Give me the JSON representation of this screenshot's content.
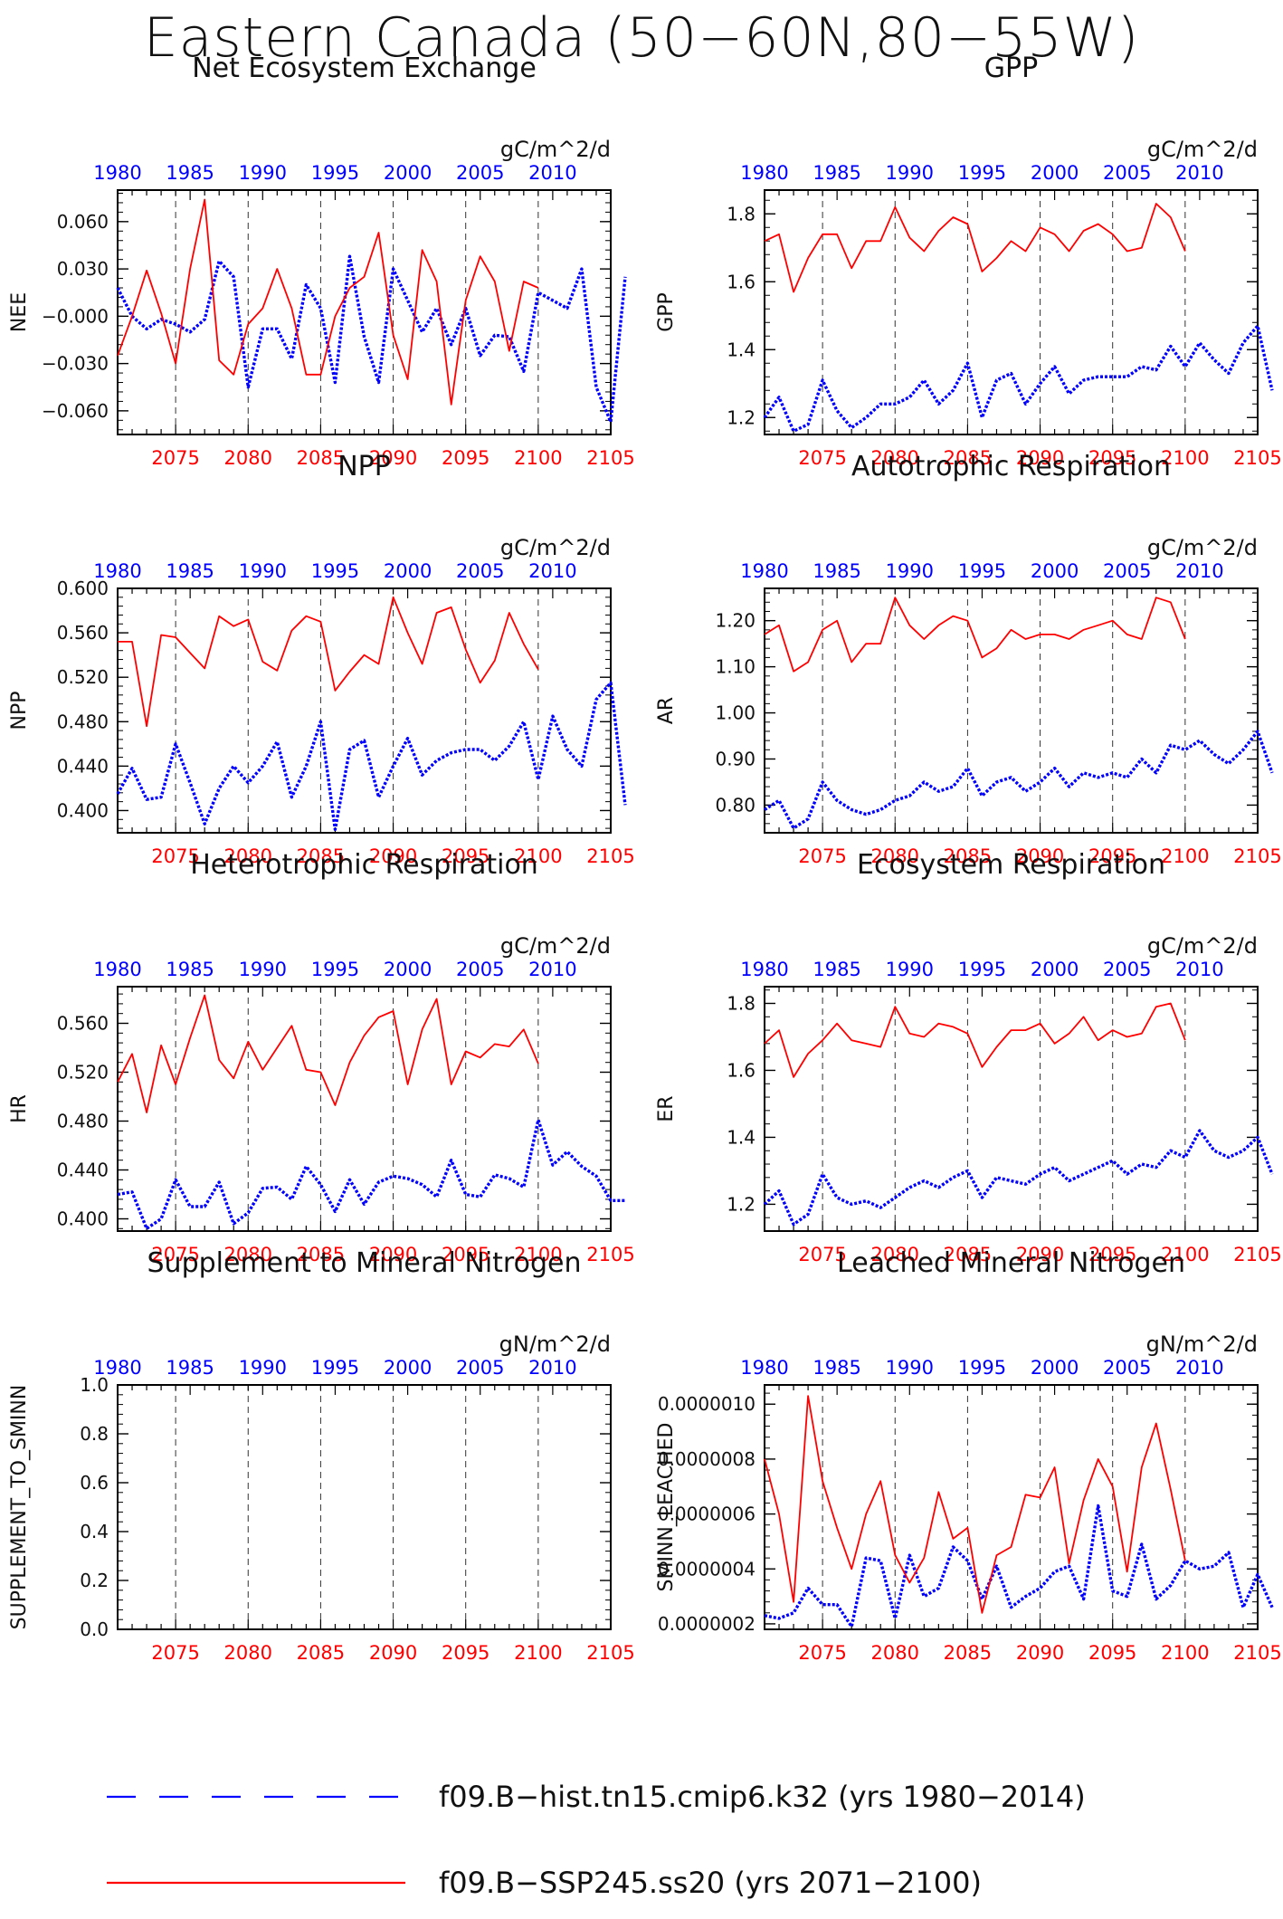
{
  "page": {
    "title": "Eastern Canada (50−60N,80−55W)"
  },
  "legend": {
    "items": [
      {
        "label": "f09.B−hist.tn15.cmip6.k32 (yrs 1980−2014)",
        "color": "#0000ff",
        "style": "dashed"
      },
      {
        "label": "f09.B−SSP245.ss20 (yrs 2071−2100)",
        "color": "#ff0000",
        "style": "solid"
      }
    ]
  },
  "colors": {
    "hist": "#0000ff",
    "future": "#ff0000"
  },
  "chart_data": [
    {
      "type": "line",
      "title": "Net Ecosystem Exchange",
      "ylabel": "NEE",
      "units": "gC/m^2/d",
      "ylim": [
        -0.075,
        0.08
      ],
      "yticks": [
        -0.06,
        -0.03,
        0.0,
        0.03,
        0.06
      ],
      "ytick_labels": [
        "−0.060",
        "−0.030",
        "−0.000",
        "0.030",
        "0.060"
      ],
      "bottom_axis": {
        "range": [
          2071,
          2105
        ],
        "ticks": [
          2075,
          2080,
          2085,
          2090,
          2095,
          2100,
          2105
        ]
      },
      "top_axis": {
        "range": [
          1980,
          2014
        ],
        "ticks": [
          1980,
          1985,
          1990,
          1995,
          2000,
          2005,
          2010
        ]
      },
      "gridlines_x": [
        2075,
        2080,
        2085,
        2090,
        2095,
        2100
      ],
      "series": [
        {
          "key": "hist",
          "x_start": 1980,
          "values": [
            0.018,
            0.0,
            -0.008,
            -0.002,
            -0.005,
            -0.01,
            -0.002,
            0.035,
            0.025,
            -0.045,
            -0.008,
            -0.008,
            -0.027,
            0.02,
            0.005,
            -0.042,
            0.038,
            -0.013,
            -0.042,
            0.03,
            0.01,
            -0.01,
            0.005,
            -0.018,
            0.005,
            -0.025,
            -0.012,
            -0.013,
            -0.035,
            0.015,
            0.01,
            0.005,
            0.03,
            -0.045,
            -0.067,
            0.025
          ]
        },
        {
          "key": "future",
          "x_start": 2071,
          "values": [
            -0.025,
            0.0,
            0.029,
            0.002,
            -0.03,
            0.03,
            0.074,
            -0.028,
            -0.037,
            -0.005,
            0.005,
            0.03,
            0.005,
            -0.037,
            -0.037,
            0.0,
            0.018,
            0.025,
            0.053,
            -0.012,
            -0.04,
            0.042,
            0.022,
            -0.056,
            0.01,
            0.038,
            0.022,
            -0.022,
            0.022,
            0.018
          ]
        }
      ]
    },
    {
      "type": "line",
      "title": "GPP",
      "ylabel": "GPP",
      "units": "gC/m^2/d",
      "ylim": [
        1.15,
        1.87
      ],
      "yticks": [
        1.2,
        1.4,
        1.6,
        1.8
      ],
      "ytick_labels": [
        "1.2",
        "1.4",
        "1.6",
        "1.8"
      ],
      "bottom_axis": {
        "range": [
          2071,
          2105
        ],
        "ticks": [
          2075,
          2080,
          2085,
          2090,
          2095,
          2100,
          2105
        ]
      },
      "top_axis": {
        "range": [
          1980,
          2014
        ],
        "ticks": [
          1980,
          1985,
          1990,
          1995,
          2000,
          2005,
          2010
        ]
      },
      "gridlines_x": [
        2075,
        2080,
        2085,
        2090,
        2095,
        2100
      ],
      "series": [
        {
          "key": "hist",
          "x_start": 1980,
          "values": [
            1.2,
            1.26,
            1.16,
            1.18,
            1.31,
            1.22,
            1.17,
            1.2,
            1.24,
            1.24,
            1.26,
            1.31,
            1.24,
            1.28,
            1.36,
            1.2,
            1.31,
            1.33,
            1.24,
            1.3,
            1.35,
            1.27,
            1.31,
            1.32,
            1.32,
            1.32,
            1.35,
            1.34,
            1.41,
            1.35,
            1.42,
            1.37,
            1.33,
            1.42,
            1.47,
            1.28
          ]
        },
        {
          "key": "future",
          "x_start": 2071,
          "values": [
            1.72,
            1.74,
            1.57,
            1.67,
            1.74,
            1.74,
            1.64,
            1.72,
            1.72,
            1.82,
            1.73,
            1.69,
            1.75,
            1.79,
            1.77,
            1.63,
            1.67,
            1.72,
            1.69,
            1.76,
            1.74,
            1.69,
            1.75,
            1.77,
            1.74,
            1.69,
            1.7,
            1.83,
            1.79,
            1.69
          ]
        }
      ]
    },
    {
      "type": "line",
      "title": "NPP",
      "ylabel": "NPP",
      "units": "gC/m^2/d",
      "ylim": [
        0.38,
        0.6
      ],
      "yticks": [
        0.4,
        0.44,
        0.48,
        0.52,
        0.56,
        0.6
      ],
      "ytick_labels": [
        "0.400",
        "0.440",
        "0.480",
        "0.520",
        "0.560",
        "0.600"
      ],
      "bottom_axis": {
        "range": [
          2071,
          2105
        ],
        "ticks": [
          2075,
          2080,
          2085,
          2090,
          2095,
          2100,
          2105
        ]
      },
      "top_axis": {
        "range": [
          1980,
          2014
        ],
        "ticks": [
          1980,
          1985,
          1990,
          1995,
          2000,
          2005,
          2010
        ]
      },
      "gridlines_x": [
        2075,
        2080,
        2085,
        2090,
        2095,
        2100
      ],
      "series": [
        {
          "key": "hist",
          "x_start": 1980,
          "values": [
            0.415,
            0.438,
            0.41,
            0.412,
            0.46,
            0.425,
            0.388,
            0.42,
            0.44,
            0.425,
            0.44,
            0.462,
            0.412,
            0.44,
            0.48,
            0.383,
            0.455,
            0.463,
            0.412,
            0.44,
            0.465,
            0.432,
            0.445,
            0.452,
            0.455,
            0.455,
            0.445,
            0.458,
            0.48,
            0.428,
            0.485,
            0.455,
            0.44,
            0.5,
            0.515,
            0.405
          ]
        },
        {
          "key": "future",
          "x_start": 2071,
          "values": [
            0.552,
            0.552,
            0.476,
            0.558,
            0.556,
            0.542,
            0.528,
            0.575,
            0.566,
            0.572,
            0.534,
            0.526,
            0.562,
            0.575,
            0.57,
            0.508,
            0.525,
            0.54,
            0.532,
            0.592,
            0.56,
            0.532,
            0.578,
            0.583,
            0.545,
            0.515,
            0.535,
            0.578,
            0.55,
            0.527
          ]
        }
      ]
    },
    {
      "type": "line",
      "title": "Autotrophic Respiration",
      "ylabel": "AR",
      "units": "gC/m^2/d",
      "ylim": [
        0.74,
        1.27
      ],
      "yticks": [
        0.8,
        0.9,
        1.0,
        1.1,
        1.2
      ],
      "ytick_labels": [
        "0.80",
        "0.90",
        "1.00",
        "1.10",
        "1.20"
      ],
      "bottom_axis": {
        "range": [
          2071,
          2105
        ],
        "ticks": [
          2075,
          2080,
          2085,
          2090,
          2095,
          2100,
          2105
        ]
      },
      "top_axis": {
        "range": [
          1980,
          2014
        ],
        "ticks": [
          1980,
          1985,
          1990,
          1995,
          2000,
          2005,
          2010
        ]
      },
      "gridlines_x": [
        2075,
        2080,
        2085,
        2090,
        2095,
        2100
      ],
      "series": [
        {
          "key": "hist",
          "x_start": 1980,
          "values": [
            0.79,
            0.81,
            0.75,
            0.77,
            0.85,
            0.81,
            0.79,
            0.78,
            0.79,
            0.81,
            0.82,
            0.85,
            0.83,
            0.84,
            0.88,
            0.82,
            0.85,
            0.86,
            0.83,
            0.85,
            0.88,
            0.84,
            0.87,
            0.86,
            0.87,
            0.86,
            0.9,
            0.87,
            0.93,
            0.92,
            0.94,
            0.91,
            0.89,
            0.92,
            0.96,
            0.87
          ]
        },
        {
          "key": "future",
          "x_start": 2071,
          "values": [
            1.17,
            1.19,
            1.09,
            1.11,
            1.18,
            1.2,
            1.11,
            1.15,
            1.15,
            1.25,
            1.19,
            1.16,
            1.19,
            1.21,
            1.2,
            1.12,
            1.14,
            1.18,
            1.16,
            1.17,
            1.17,
            1.16,
            1.18,
            1.19,
            1.2,
            1.17,
            1.16,
            1.25,
            1.24,
            1.16
          ]
        }
      ]
    },
    {
      "type": "line",
      "title": "Heterotrophic Respiration",
      "ylabel": "HR",
      "units": "gC/m^2/d",
      "ylim": [
        0.39,
        0.59
      ],
      "yticks": [
        0.4,
        0.44,
        0.48,
        0.52,
        0.56
      ],
      "ytick_labels": [
        "0.400",
        "0.440",
        "0.480",
        "0.520",
        "0.560"
      ],
      "bottom_axis": {
        "range": [
          2071,
          2105
        ],
        "ticks": [
          2075,
          2080,
          2085,
          2090,
          2095,
          2100,
          2105
        ]
      },
      "top_axis": {
        "range": [
          1980,
          2014
        ],
        "ticks": [
          1980,
          1985,
          1990,
          1995,
          2000,
          2005,
          2010
        ]
      },
      "gridlines_x": [
        2075,
        2080,
        2085,
        2090,
        2095,
        2100
      ],
      "series": [
        {
          "key": "hist",
          "x_start": 1980,
          "values": [
            0.42,
            0.422,
            0.392,
            0.4,
            0.432,
            0.41,
            0.41,
            0.43,
            0.396,
            0.405,
            0.425,
            0.426,
            0.416,
            0.443,
            0.428,
            0.406,
            0.432,
            0.412,
            0.43,
            0.435,
            0.433,
            0.428,
            0.418,
            0.448,
            0.42,
            0.418,
            0.436,
            0.433,
            0.426,
            0.481,
            0.444,
            0.455,
            0.443,
            0.435,
            0.415,
            0.415
          ]
        },
        {
          "key": "future",
          "x_start": 2071,
          "values": [
            0.512,
            0.535,
            0.487,
            0.542,
            0.51,
            0.548,
            0.583,
            0.53,
            0.515,
            0.545,
            0.522,
            0.54,
            0.558,
            0.522,
            0.52,
            0.493,
            0.528,
            0.55,
            0.565,
            0.57,
            0.51,
            0.555,
            0.58,
            0.51,
            0.537,
            0.532,
            0.543,
            0.541,
            0.555,
            0.527
          ]
        }
      ]
    },
    {
      "type": "line",
      "title": "Ecosystem Respiration",
      "ylabel": "ER",
      "units": "gC/m^2/d",
      "ylim": [
        1.12,
        1.85
      ],
      "yticks": [
        1.2,
        1.4,
        1.6,
        1.8
      ],
      "ytick_labels": [
        "1.2",
        "1.4",
        "1.6",
        "1.8"
      ],
      "bottom_axis": {
        "range": [
          2071,
          2105
        ],
        "ticks": [
          2075,
          2080,
          2085,
          2090,
          2095,
          2100,
          2105
        ]
      },
      "top_axis": {
        "range": [
          1980,
          2014
        ],
        "ticks": [
          1980,
          1985,
          1990,
          1995,
          2000,
          2005,
          2010
        ]
      },
      "gridlines_x": [
        2075,
        2080,
        2085,
        2090,
        2095,
        2100
      ],
      "series": [
        {
          "key": "hist",
          "x_start": 1980,
          "values": [
            1.2,
            1.24,
            1.14,
            1.17,
            1.29,
            1.22,
            1.2,
            1.21,
            1.19,
            1.22,
            1.25,
            1.27,
            1.25,
            1.28,
            1.3,
            1.22,
            1.28,
            1.27,
            1.26,
            1.29,
            1.31,
            1.27,
            1.29,
            1.31,
            1.33,
            1.29,
            1.32,
            1.31,
            1.36,
            1.34,
            1.42,
            1.36,
            1.34,
            1.36,
            1.4,
            1.29
          ]
        },
        {
          "key": "future",
          "x_start": 2071,
          "values": [
            1.68,
            1.72,
            1.58,
            1.65,
            1.69,
            1.74,
            1.69,
            1.68,
            1.67,
            1.79,
            1.71,
            1.7,
            1.74,
            1.73,
            1.71,
            1.61,
            1.67,
            1.72,
            1.72,
            1.74,
            1.68,
            1.71,
            1.76,
            1.69,
            1.72,
            1.7,
            1.71,
            1.79,
            1.8,
            1.69
          ]
        }
      ]
    },
    {
      "type": "line",
      "title": "Supplement to Mineral Nitrogen",
      "ylabel": "SUPPLEMENT_TO_SMINN",
      "units": "gN/m^2/d",
      "ylim": [
        0,
        1.0
      ],
      "yticks": [
        0.0,
        0.2,
        0.4,
        0.6,
        0.8,
        1.0
      ],
      "ytick_labels": [
        "0.0",
        "0.2",
        "0.4",
        "0.6",
        "0.8",
        "1.0"
      ],
      "bottom_axis": {
        "range": [
          2071,
          2105
        ],
        "ticks": [
          2075,
          2080,
          2085,
          2090,
          2095,
          2100,
          2105
        ]
      },
      "top_axis": {
        "range": [
          1980,
          2014
        ],
        "ticks": [
          1980,
          1985,
          1990,
          1995,
          2000,
          2005,
          2010
        ]
      },
      "gridlines_x": [
        2075,
        2080,
        2085,
        2090,
        2095,
        2100
      ],
      "series": []
    },
    {
      "type": "line",
      "title": "Leached Mineral Nitrogen",
      "ylabel": "SMINN_LEACHED",
      "units": "gN/m^2/d",
      "ylim": [
        1.8e-07,
        1.07e-06
      ],
      "yticks": [
        2e-07,
        4e-07,
        6e-07,
        8e-07,
        1e-06
      ],
      "ytick_labels": [
        "0.0000002",
        "0.0000004",
        "0.0000006",
        "0.0000008",
        "0.0000010"
      ],
      "bottom_axis": {
        "range": [
          2071,
          2105
        ],
        "ticks": [
          2075,
          2080,
          2085,
          2090,
          2095,
          2100,
          2105
        ]
      },
      "top_axis": {
        "range": [
          1980,
          2014
        ],
        "ticks": [
          1980,
          1985,
          1990,
          1995,
          2000,
          2005,
          2010
        ]
      },
      "gridlines_x": [
        2075,
        2080,
        2085,
        2090,
        2095,
        2100
      ],
      "series": [
        {
          "key": "hist",
          "x_start": 1980,
          "values": [
            2.3e-07,
            2.2e-07,
            2.4e-07,
            3.3e-07,
            2.7e-07,
            2.7e-07,
            1.9e-07,
            4.4e-07,
            4.3e-07,
            2.2e-07,
            4.5e-07,
            3e-07,
            3.3e-07,
            4.8e-07,
            4.3e-07,
            2.9e-07,
            4.1e-07,
            2.6e-07,
            3e-07,
            3.3e-07,
            3.9e-07,
            4.1e-07,
            2.9e-07,
            6.3e-07,
            3.2e-07,
            3e-07,
            4.9e-07,
            2.9e-07,
            3.4e-07,
            4.3e-07,
            4e-07,
            4.1e-07,
            4.6e-07,
            2.6e-07,
            3.8e-07,
            2.6e-07
          ]
        },
        {
          "key": "future",
          "x_start": 2071,
          "values": [
            8e-07,
            6e-07,
            2.8e-07,
            1.03e-06,
            7.2e-07,
            5.5e-07,
            4e-07,
            6e-07,
            7.2e-07,
            4.5e-07,
            3.5e-07,
            4.4e-07,
            6.8e-07,
            5.1e-07,
            5.5e-07,
            2.4e-07,
            4.5e-07,
            4.8e-07,
            6.7e-07,
            6.6e-07,
            7.7e-07,
            4.2e-07,
            6.5e-07,
            8e-07,
            7e-07,
            3.9e-07,
            7.7e-07,
            9.3e-07,
            6.9e-07,
            4.3e-07
          ]
        }
      ]
    }
  ]
}
